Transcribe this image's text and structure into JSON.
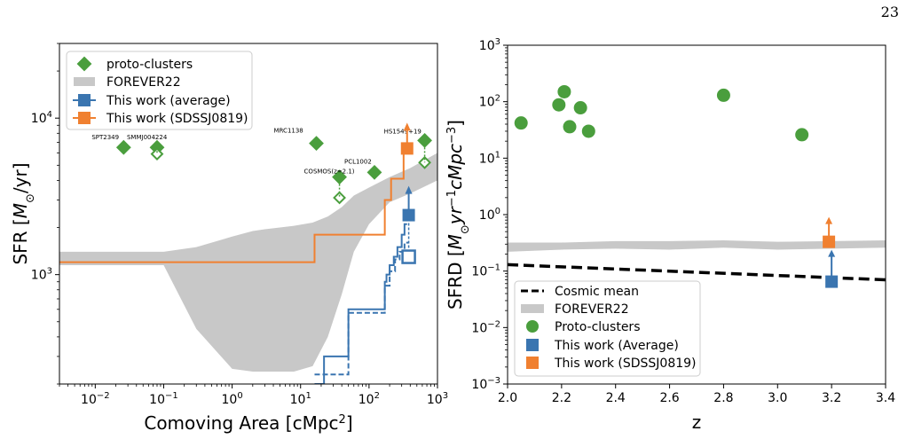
{
  "page_number": "23",
  "colors": {
    "green": "#4a9e3d",
    "blue": "#3a75b0",
    "orange": "#f08030",
    "gray": "#c8c8c8",
    "black": "#000000"
  },
  "chart_data": [
    {
      "type": "scatter",
      "xlabel": "Comoving Area [cMpc²]",
      "ylabel": "SFR [M⊙/yr]",
      "xscale": "log",
      "yscale": "log",
      "xlim": [
        0.003,
        1000
      ],
      "ylim": [
        200,
        30000
      ],
      "xticks": [
        {
          "value": 0.01,
          "base": "10",
          "exp": "−2"
        },
        {
          "value": 0.1,
          "base": "10",
          "exp": "−1"
        },
        {
          "value": 1,
          "base": "10",
          "exp": "0"
        },
        {
          "value": 10,
          "base": "10",
          "exp": "1"
        },
        {
          "value": 100,
          "base": "10",
          "exp": "2"
        },
        {
          "value": 1000,
          "base": "10",
          "exp": "3"
        }
      ],
      "yticks": [
        {
          "value": 1000,
          "base": "10",
          "exp": "3"
        },
        {
          "value": 10000,
          "base": "10",
          "exp": "4"
        }
      ],
      "legend": {
        "position": "top-left",
        "entries": [
          "proto-clusters",
          "FOREVER22",
          "This work (average)",
          "This work (SDSSJ0819)"
        ]
      },
      "protoclusters": [
        {
          "name": "SPT2349",
          "x": 0.026,
          "y": 6500
        },
        {
          "name": "SMMJ004224",
          "x": 0.08,
          "y": 6500
        },
        {
          "name": "MRC1138",
          "x": 17,
          "y": 6900
        },
        {
          "name": "COSMOS(z=2.1)",
          "x": 37,
          "y": 4200
        },
        {
          "name": "PCL1002",
          "x": 120,
          "y": 4500
        },
        {
          "name": "HS1549+19",
          "x": 650,
          "y": 7200
        }
      ],
      "protoclusters_open": [
        {
          "x": 0.08,
          "y": 5900
        },
        {
          "x": 37,
          "y": 3100
        },
        {
          "x": 650,
          "y": 5200
        }
      ],
      "forever22_band": {
        "x": [
          0.003,
          0.1,
          0.3,
          1,
          2,
          3,
          5,
          8,
          15,
          25,
          40,
          60,
          100,
          200,
          400,
          1000
        ],
        "upper": [
          1400,
          1400,
          1500,
          1750,
          1900,
          1950,
          2000,
          2050,
          2150,
          2350,
          2700,
          3200,
          3600,
          4200,
          4800,
          6000
        ],
        "lower": [
          1150,
          1150,
          450,
          250,
          240,
          240,
          240,
          240,
          260,
          400,
          750,
          1400,
          2100,
          2900,
          3300,
          4000
        ]
      },
      "this_work_sdss_step": {
        "x": [
          0.003,
          16,
          16,
          170,
          170,
          210,
          210,
          320,
          320,
          360
        ],
        "y": [
          1200,
          1200,
          1800,
          1800,
          3000,
          3000,
          4100,
          4100,
          6400,
          6400
        ]
      },
      "this_work_avg_step_solid": {
        "x": [
          16,
          22,
          22,
          50,
          50,
          170,
          170,
          180,
          180,
          200,
          200,
          230,
          230,
          260,
          260,
          300,
          300,
          330,
          330,
          360
        ],
        "y": [
          200,
          200,
          300,
          300,
          600,
          600,
          900,
          900,
          1000,
          1000,
          1150,
          1150,
          1300,
          1300,
          1500,
          1500,
          1800,
          1800,
          2100,
          2100
        ]
      },
      "this_work_avg_step_dashed": {
        "x": [
          16,
          50,
          50,
          170,
          170,
          200,
          200,
          240,
          240,
          280,
          280,
          330,
          330,
          380
        ],
        "y": [
          230,
          230,
          570,
          570,
          850,
          850,
          1050,
          1050,
          1250,
          1250,
          1400,
          1400,
          1600,
          1600
        ]
      },
      "this_work_avg_point": {
        "x": 380,
        "y": 2400
      },
      "this_work_avg_open_point": {
        "x": 380,
        "y": 1300
      },
      "this_work_sdss_point": {
        "x": 360,
        "y": 6400
      }
    },
    {
      "type": "scatter",
      "xlabel": "z",
      "ylabel": "SFRD [M⊙yr⁻¹cMpc⁻³]",
      "xscale": "linear",
      "yscale": "log",
      "xlim": [
        2.0,
        3.4
      ],
      "ylim": [
        0.001,
        1000
      ],
      "xticks": [
        "2.0",
        "2.2",
        "2.4",
        "2.6",
        "2.8",
        "3.0",
        "3.2",
        "3.4"
      ],
      "yticks": [
        {
          "value": 0.001,
          "base": "10",
          "exp": "−3"
        },
        {
          "value": 0.01,
          "base": "10",
          "exp": "−2"
        },
        {
          "value": 0.1,
          "base": "10",
          "exp": "−1"
        },
        {
          "value": 1,
          "base": "10",
          "exp": "0"
        },
        {
          "value": 10,
          "base": "10",
          "exp": "1"
        },
        {
          "value": 100,
          "base": "10",
          "exp": "2"
        },
        {
          "value": 1000,
          "base": "10",
          "exp": "3"
        }
      ],
      "legend": {
        "position": "lower-left",
        "entries": [
          "Cosmic mean",
          "FOREVER22",
          "Proto-clusters",
          "This work (Average)",
          "This work (SDSSJ0819)"
        ]
      },
      "cosmic_mean": {
        "x": [
          2.0,
          3.4
        ],
        "y": [
          0.13,
          0.07
        ]
      },
      "forever22_band": {
        "x": [
          2.0,
          2.2,
          2.4,
          2.6,
          2.8,
          3.0,
          3.2,
          3.4
        ],
        "upper": [
          0.32,
          0.32,
          0.34,
          0.34,
          0.35,
          0.33,
          0.34,
          0.35
        ],
        "lower": [
          0.22,
          0.24,
          0.25,
          0.24,
          0.26,
          0.24,
          0.25,
          0.26
        ]
      },
      "protoclusters": [
        {
          "z": 2.05,
          "y": 42
        },
        {
          "z": 2.19,
          "y": 88
        },
        {
          "z": 2.21,
          "y": 150
        },
        {
          "z": 2.23,
          "y": 36
        },
        {
          "z": 2.27,
          "y": 78
        },
        {
          "z": 2.3,
          "y": 30
        },
        {
          "z": 2.8,
          "y": 130
        },
        {
          "z": 3.09,
          "y": 26
        }
      ],
      "this_work_avg": {
        "z": 3.2,
        "y": 0.065
      },
      "this_work_sdss": {
        "z": 3.19,
        "y": 0.33
      }
    }
  ]
}
